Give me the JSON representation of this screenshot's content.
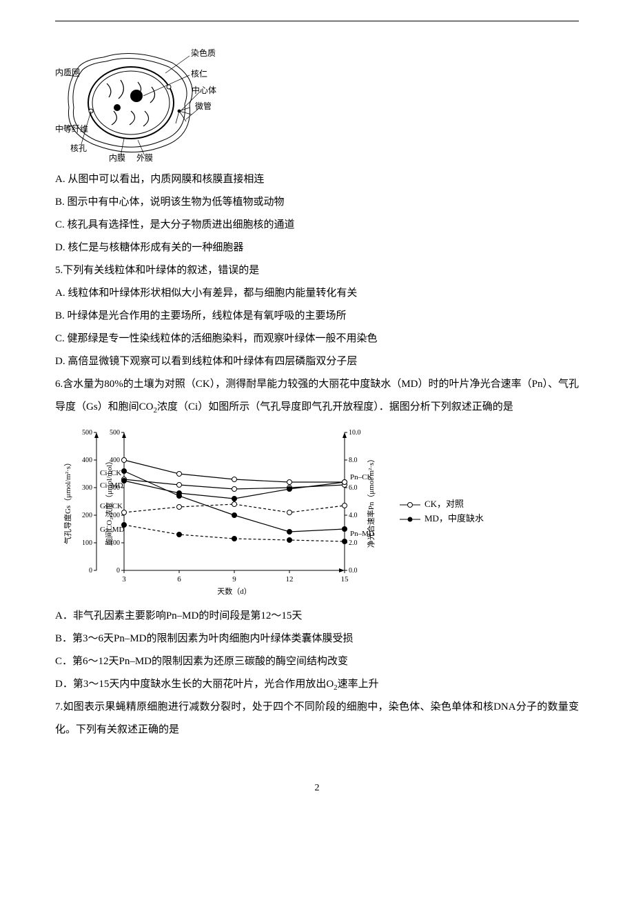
{
  "cell_diagram": {
    "labels": {
      "chromatin": "染色质",
      "nucleolus": "核仁",
      "centrosome": "中心体",
      "microtubule": "微管",
      "er": "内质网",
      "intermediate_filament": "中等纤维",
      "nuclear_pore": "核孔",
      "inner_membrane": "内膜",
      "outer_membrane": "外膜"
    }
  },
  "q4": {
    "optA": "A. 从图中可以看出，内质网膜和核膜直接相连",
    "optB": "B. 图示中有中心体，说明该生物为低等植物或动物",
    "optC": "C. 核孔具有选择性，是大分子物质进出细胞核的通道",
    "optD": "D. 核仁是与核糖体形成有关的一种细胞器"
  },
  "q5": {
    "stem": "5.下列有关线粒体和叶绿体的叙述，错误的是",
    "optA": "A. 线粒体和叶绿体形状相似大小有差异，都与细胞内能量转化有关",
    "optB": "B. 叶绿体是光合作用的主要场所，线粒体是有氧呼吸的主要场所",
    "optC": "C. 健那绿是专一性染线粒体的活细胞染料，而观察叶绿体一般不用染色",
    "optD": "D. 高倍显微镜下观察可以看到线粒体和叶绿体有四层磷脂双分子层"
  },
  "q6": {
    "stem_p1": "6.含水量为80%的土壤为对照（CK），测得耐旱能力较强的大丽花中度缺水（MD）时的叶片净光合速率（Pn）、气孔导度（Gs）和胞间CO",
    "stem_sub1": "2",
    "stem_p2": "浓度（Ci）如图所示（气孔导度即气孔开放程度）．据图分析下列叙述正确的是",
    "optA": "A．非气孔因素主要影响Pn–MD的时间段是第12～15天",
    "optB": "B．第3～6天Pn–MD的限制因素为叶肉细胞内叶绿体类囊体膜受损",
    "optC": "C．第6～12天Pn–MD的限制因素为还原三碳酸的酶空间结构改变",
    "optD_p1": "D．第3～15天内中度缺水生长的大丽花叶片，光合作用放出O",
    "optD_sub": "2",
    "optD_p2": "速率上升"
  },
  "q7": {
    "stem": "7.如图表示果蝇精原细胞进行减数分裂时，处于四个不同阶段的细胞中，染色体、染色单体和核DNA分子的数量变化。下列有关叙述正确的是"
  },
  "chart": {
    "type": "line",
    "x_ticks": [
      3,
      6,
      9,
      12,
      15
    ],
    "x_label": "天数（d）",
    "axis_gs": {
      "label": "气孔导度Gs（μmol/m²·s）",
      "min": 0,
      "max": 500,
      "ticks": [
        0,
        100,
        200,
        300,
        400,
        500
      ]
    },
    "axis_ci": {
      "label": "胞间CO₂浓度（μmol/mol）",
      "min": 0,
      "max": 500,
      "ticks": [
        0,
        100,
        200,
        300,
        400,
        500
      ]
    },
    "axis_pn": {
      "label": "净光合速率Pn（μmol/m²·s）",
      "min": 0.0,
      "max": 10.0,
      "ticks": [
        0.0,
        2.0,
        4.0,
        6.0,
        8.0,
        10.0
      ]
    },
    "series": {
      "Ci_CK": {
        "label": "Ci–CK",
        "x": [
          3,
          6,
          9,
          12,
          15
        ],
        "y": [
          330,
          310,
          295,
          300,
          310
        ],
        "axis": "ci",
        "marker": "open-circle",
        "dash": "solid"
      },
      "Ci_MD": {
        "label": "Ci–MD",
        "x": [
          3,
          6,
          9,
          12,
          15
        ],
        "y": [
          325,
          280,
          260,
          295,
          320
        ],
        "axis": "ci",
        "marker": "filled-circle",
        "dash": "solid"
      },
      "Gs_CK": {
        "label": "Gs–CK",
        "x": [
          3,
          6,
          9,
          12,
          15
        ],
        "y": [
          210,
          230,
          240,
          210,
          235
        ],
        "axis": "gs",
        "marker": "open-circle",
        "dash": "dashed"
      },
      "Gs_MD": {
        "label": "Gs–MD",
        "x": [
          3,
          6,
          9,
          12,
          15
        ],
        "y": [
          165,
          130,
          115,
          110,
          105
        ],
        "axis": "gs",
        "marker": "filled-circle",
        "dash": "dashed"
      },
      "Pn_CK": {
        "label": "Pn–CK",
        "x": [
          3,
          6,
          9,
          12,
          15
        ],
        "y": [
          8.0,
          7.0,
          6.6,
          6.4,
          6.4
        ],
        "axis": "pn",
        "marker": "open-circle",
        "dash": "solid"
      },
      "Pn_MD": {
        "label": "Pn–MD",
        "x": [
          3,
          6,
          9,
          12,
          15
        ],
        "y": [
          7.2,
          5.4,
          4.0,
          2.8,
          3.0
        ],
        "axis": "pn",
        "marker": "filled-circle",
        "dash": "solid"
      }
    },
    "legend": {
      "ck": "CK，对照",
      "md": "MD，中度缺水"
    },
    "stroke_color": "#000000",
    "background_color": "#ffffff",
    "line_width": 1.2,
    "marker_size": 3.5
  },
  "page_number": "2"
}
